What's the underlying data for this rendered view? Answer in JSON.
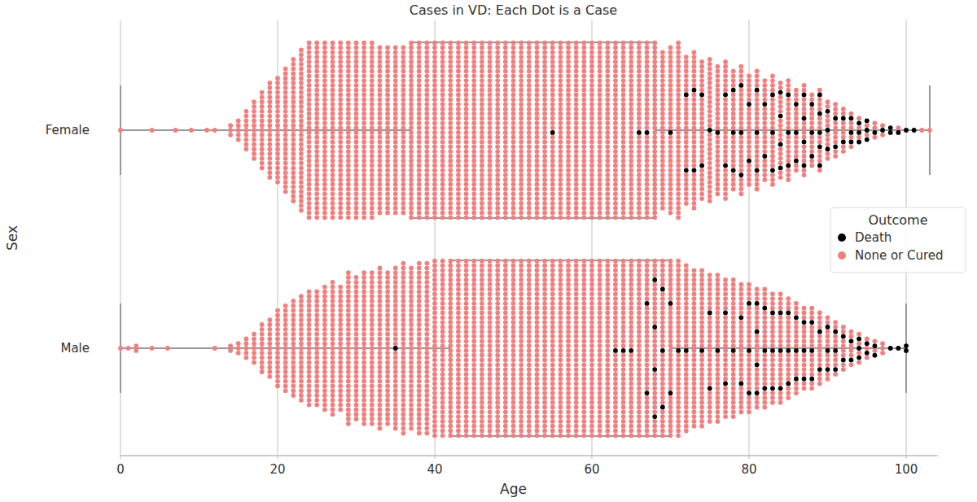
{
  "chart_data": {
    "type": "swarm",
    "title": "Cases in VD: Each Dot is a Case",
    "x_label": "Age",
    "y_label": "Sex",
    "categories": [
      "Female",
      "Male"
    ],
    "x": [
      0,
      1,
      2,
      3,
      4,
      5,
      6,
      7,
      8,
      9,
      10,
      11,
      12,
      13,
      14,
      15,
      16,
      17,
      18,
      19,
      20,
      21,
      22,
      23,
      24,
      25,
      26,
      27,
      28,
      29,
      30,
      31,
      32,
      33,
      34,
      35,
      36,
      37,
      38,
      39,
      40,
      41,
      42,
      43,
      44,
      45,
      46,
      47,
      48,
      49,
      50,
      51,
      52,
      53,
      54,
      55,
      56,
      57,
      58,
      59,
      60,
      61,
      62,
      63,
      64,
      65,
      66,
      67,
      68,
      69,
      70,
      71,
      72,
      73,
      74,
      75,
      76,
      77,
      78,
      79,
      80,
      81,
      82,
      83,
      84,
      85,
      86,
      87,
      88,
      89,
      90,
      91,
      92,
      93,
      94,
      95,
      96,
      97,
      98,
      99,
      100,
      101,
      102,
      103
    ],
    "series": [
      {
        "name": "Death",
        "color": "#000000",
        "values": [
          [
            0,
            0,
            0,
            0,
            0,
            0,
            0,
            0,
            0,
            0,
            0,
            0,
            0,
            0,
            0,
            0,
            0,
            0,
            0,
            0,
            0,
            0,
            0,
            0,
            0,
            0,
            0,
            0,
            0,
            0,
            0,
            0,
            0,
            0,
            0,
            0,
            0,
            0,
            0,
            0,
            0,
            0,
            0,
            0,
            0,
            0,
            0,
            0,
            0,
            0,
            0,
            0,
            0,
            0,
            0,
            1,
            0,
            0,
            0,
            0,
            0,
            0,
            0,
            0,
            0,
            0,
            1,
            1,
            0,
            0,
            1,
            0,
            2,
            2,
            2,
            1,
            1,
            2,
            3,
            3,
            2,
            3,
            2,
            3,
            4,
            3,
            3,
            4,
            3,
            5,
            3,
            2,
            2,
            3,
            3,
            3,
            1,
            1,
            2,
            1,
            1,
            1,
            0,
            0
          ],
          [
            0,
            0,
            0,
            0,
            0,
            0,
            0,
            0,
            0,
            0,
            0,
            0,
            0,
            0,
            0,
            0,
            0,
            0,
            0,
            0,
            0,
            0,
            0,
            0,
            0,
            0,
            0,
            0,
            0,
            0,
            0,
            0,
            0,
            0,
            0,
            1,
            0,
            0,
            0,
            0,
            0,
            0,
            0,
            0,
            0,
            0,
            0,
            0,
            0,
            0,
            0,
            0,
            0,
            0,
            0,
            0,
            0,
            0,
            0,
            0,
            0,
            0,
            0,
            1,
            1,
            1,
            0,
            2,
            4,
            3,
            2,
            1,
            1,
            0,
            1,
            2,
            1,
            2,
            1,
            2,
            3,
            4,
            3,
            3,
            3,
            3,
            3,
            3,
            3,
            2,
            3,
            3,
            2,
            2,
            3,
            2,
            2,
            0,
            1,
            1,
            2,
            0,
            0,
            0
          ]
        ]
      },
      {
        "name": "None or Cured",
        "color": "#f08080",
        "values": [
          [
            1,
            0,
            0,
            0,
            1,
            0,
            0,
            1,
            0,
            1,
            0,
            1,
            1,
            0,
            3,
            5,
            9,
            13,
            17,
            21,
            23,
            27,
            31,
            35,
            38,
            38,
            38,
            38,
            38,
            38,
            38,
            38,
            38,
            36,
            36,
            36,
            36,
            38,
            38,
            38,
            38,
            38,
            38,
            38,
            38,
            38,
            38,
            38,
            38,
            38,
            38,
            38,
            38,
            38,
            38,
            37,
            38,
            38,
            38,
            38,
            38,
            38,
            38,
            38,
            38,
            38,
            37,
            37,
            38,
            34,
            35,
            38,
            30,
            32,
            28,
            30,
            27,
            28,
            23,
            25,
            22,
            23,
            20,
            21,
            17,
            19,
            15,
            16,
            13,
            13,
            10,
            10,
            8,
            5,
            3,
            2,
            3,
            2,
            0,
            1,
            0,
            0,
            1,
            1
          ],
          [
            1,
            1,
            2,
            0,
            1,
            0,
            1,
            0,
            0,
            0,
            0,
            0,
            1,
            0,
            2,
            3,
            5,
            7,
            11,
            13,
            17,
            19,
            21,
            23,
            25,
            25,
            27,
            29,
            27,
            33,
            31,
            33,
            33,
            35,
            33,
            34,
            37,
            35,
            37,
            37,
            38,
            38,
            38,
            38,
            38,
            38,
            38,
            38,
            38,
            38,
            38,
            38,
            38,
            38,
            38,
            38,
            38,
            38,
            38,
            38,
            38,
            38,
            38,
            37,
            37,
            37,
            38,
            36,
            34,
            35,
            36,
            37,
            35,
            34,
            33,
            30,
            31,
            28,
            29,
            26,
            25,
            22,
            23,
            21,
            21,
            19,
            17,
            15,
            15,
            14,
            11,
            9,
            8,
            6,
            4,
            3,
            2,
            3,
            0,
            0,
            0,
            0,
            0,
            0
          ]
        ]
      }
    ],
    "boxes": [
      {
        "whislo": 0,
        "q1": 37,
        "q3": 68,
        "whishi": 103
      },
      {
        "whislo": 0,
        "q1": 42,
        "q3": 70,
        "whishi": 100
      }
    ],
    "xlim": [
      0,
      104
    ],
    "xticks": [
      0,
      20,
      40,
      60,
      80,
      100
    ],
    "grid": true,
    "legend": "right",
    "legend_title": "Outcome"
  }
}
